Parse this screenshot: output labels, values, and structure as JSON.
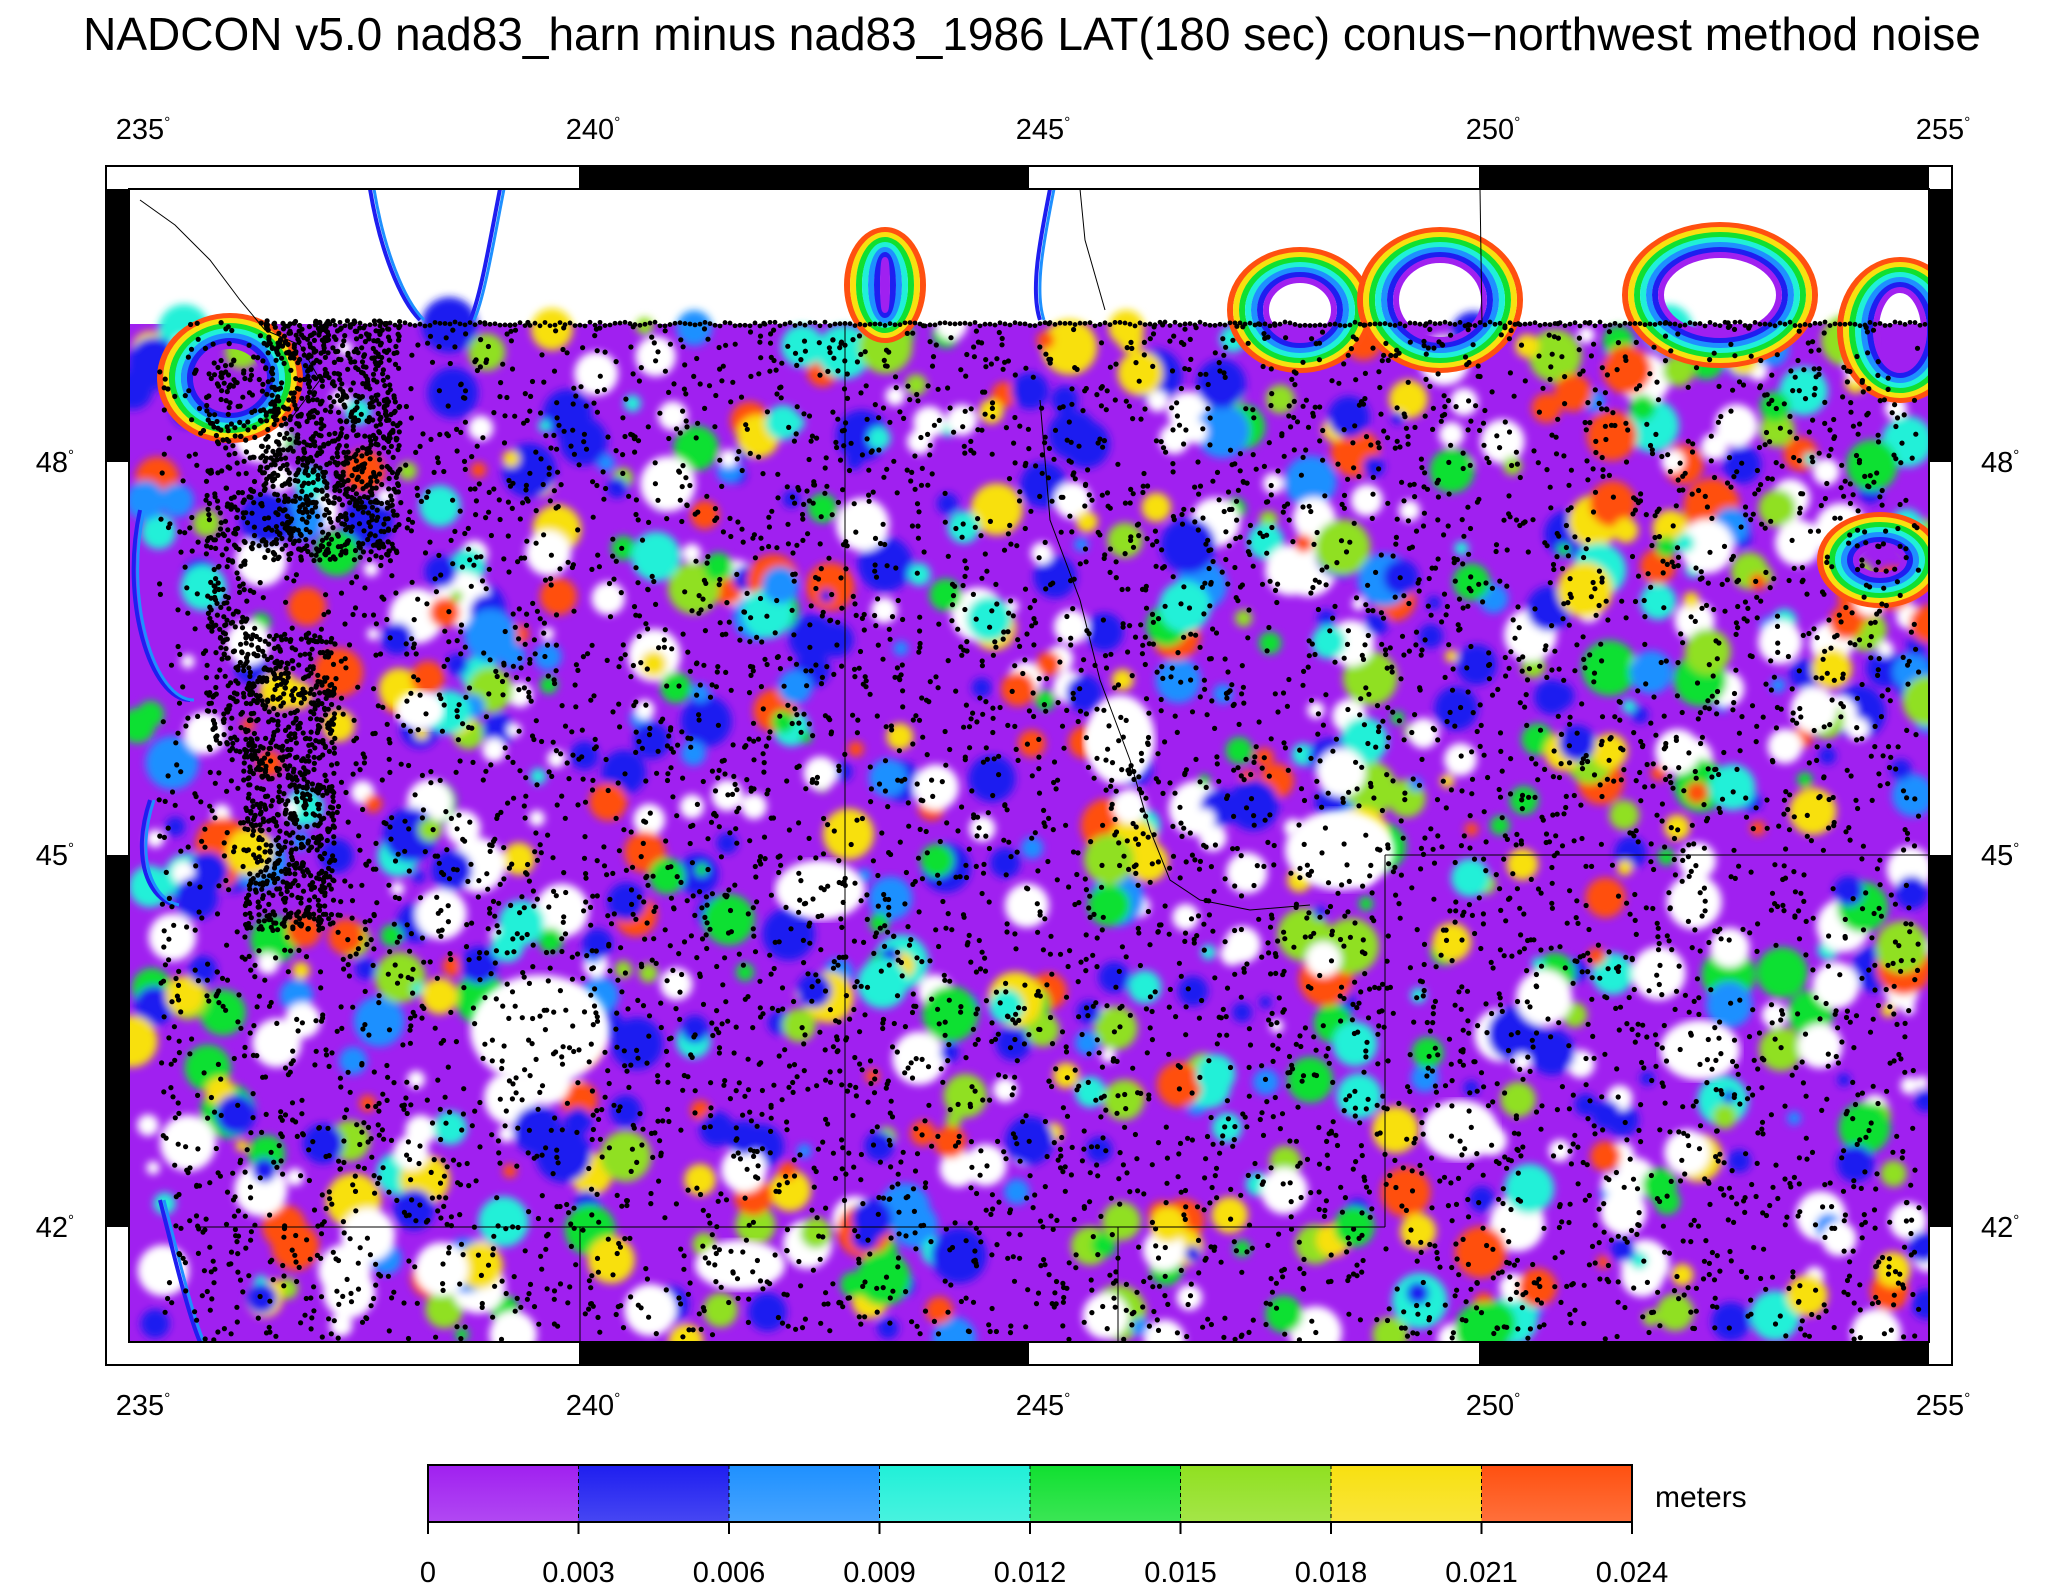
{
  "title": "NADCON v5.0 nad83_harn minus nad83_1986 LAT(180 sec) conus−northwest method noise",
  "map": {
    "lon_ticks": [
      "235",
      "240",
      "245",
      "250",
      "255"
    ],
    "lat_ticks": [
      "48",
      "45",
      "42"
    ],
    "degree_symbol": "°",
    "lon_range": [
      235,
      255
    ],
    "lat_range": [
      40.8,
      49.0
    ]
  },
  "colorbar": {
    "units": "meters",
    "tick_labels": [
      "0",
      "0.003",
      "0.006",
      "0.009",
      "0.012",
      "0.015",
      "0.018",
      "0.021",
      "0.024"
    ],
    "colors": [
      "#a020f0",
      "#1e1ef0",
      "#1e90ff",
      "#20f0d8",
      "#10e030",
      "#90e020",
      "#f8e010",
      "#ff5010"
    ],
    "range": [
      0,
      0.024
    ]
  },
  "palette": {
    "outside": "#ffffff",
    "dots": "#000000"
  }
}
